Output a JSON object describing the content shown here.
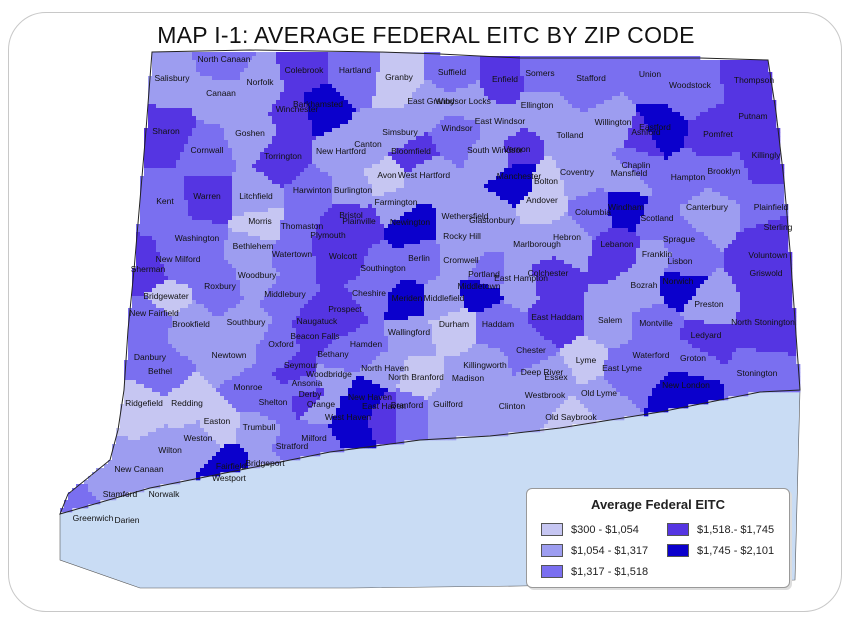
{
  "title": "MAP I-1: AVERAGE FEDERAL EITC BY ZIP CODE",
  "legend": {
    "title": "Average Federal EITC",
    "items": [
      {
        "label": "$300 - $1,054",
        "color": "#c6c6f2"
      },
      {
        "label": "$1,054 - $1,317",
        "color": "#9d9df0"
      },
      {
        "label": "$1,317 - $1,518",
        "color": "#7a6ff0"
      },
      {
        "label": "$1,518.- $1,745",
        "color": "#5535e2"
      },
      {
        "label": "$1,745 - $2,101",
        "color": "#0b00cc"
      }
    ]
  },
  "towns": [
    "North Canaan",
    "Salisbury",
    "Canaan",
    "Norfolk",
    "Colebrook",
    "Hartland",
    "Granby",
    "Suffield",
    "Enfield",
    "Somers",
    "Stafford",
    "Union",
    "Woodstock",
    "Thompson",
    "Barkhamsted",
    "East Granby",
    "Windsor Locks",
    "Ellington",
    "Putnam",
    "Winchester",
    "East Windsor",
    "Pomfret",
    "Eastford",
    "Sharon",
    "Goshen",
    "Windsor",
    "Tolland",
    "Willington",
    "Ashford",
    "Killingly",
    "Cornwall",
    "Torrington",
    "New Hartford",
    "Canton",
    "Simsbury",
    "Bloomfield",
    "South Windsor",
    "Vernon",
    "Chaplin",
    "Brooklyn",
    "Avon",
    "West Hartford",
    "Manchester",
    "Bolton",
    "Coventry",
    "Mansfield",
    "Hampton",
    "Kent",
    "Warren",
    "Litchfield",
    "Harwinton",
    "Burlington",
    "Farmington",
    "Andover",
    "Columbia",
    "Windham",
    "Canterbury",
    "Plainfield",
    "Morris",
    "Bristol",
    "Wethersfield",
    "Glastonbury",
    "Hebron",
    "Scotland",
    "Sterling",
    "Washington",
    "Thomaston",
    "Plainville",
    "Newington",
    "Rocky Hill",
    "Sprague",
    "New Milford",
    "Bethlehem",
    "Plymouth",
    "Marlborough",
    "Lebanon",
    "Franklin",
    "Lisbon",
    "Voluntown",
    "Watertown",
    "Wolcott",
    "Berlin",
    "Cromwell",
    "Griswold",
    "Sherman",
    "Woodbury",
    "Southington",
    "Portland",
    "East Hampton",
    "Colchester",
    "Norwich",
    "Roxbury",
    "Bozrah",
    "Bridgewater",
    "Middlebury",
    "Cheshire",
    "Meriden",
    "Middletown",
    "Preston",
    "Middlefield",
    "Prospect",
    "New Fairfield",
    "Brookfield",
    "Southbury",
    "Naugatuck",
    "East Haddam",
    "North Stonington",
    "Wallingford",
    "Durham",
    "Haddam",
    "Salem",
    "Montville",
    "Ledyard",
    "Beacon Falls",
    "Danbury",
    "Newtown",
    "Oxford",
    "Hamden",
    "Bethany",
    "Chester",
    "Lyme",
    "Waterford",
    "Groton",
    "Stonington",
    "Seymour",
    "Woodbridge",
    "North Haven",
    "Killingworth",
    "Deep River",
    "Bethel",
    "Monroe",
    "Ansonia",
    "North Branford",
    "Madison",
    "Essex",
    "East Lyme",
    "Derby",
    "New London",
    "Old Lyme",
    "Ridgefield",
    "Redding",
    "Shelton",
    "Orange",
    "New Haven",
    "East Haven",
    "Guilford",
    "Clinton",
    "Westbrook",
    "Old Saybrook",
    "West Haven",
    "Branford",
    "Easton",
    "Trumbull",
    "Weston",
    "Milford",
    "Wilton",
    "Stratford",
    "Fairfield",
    "New Canaan",
    "Bridgeport",
    "Westport",
    "Stamford",
    "Norwalk",
    "Greenwich",
    "Darien"
  ]
}
